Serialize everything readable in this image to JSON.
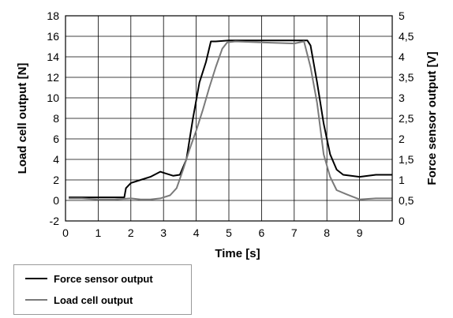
{
  "chart_data": {
    "type": "line",
    "xlabel": "Time [s]",
    "ylabel_left": "Load cell output [N]",
    "ylabel_right": "Force sensor output [V]",
    "xlim": [
      0,
      10
    ],
    "ylim_left": [
      -2,
      18
    ],
    "ylim_right": [
      0,
      5
    ],
    "x_ticks": [
      "0",
      "1",
      "2",
      "3",
      "4",
      "5",
      "6",
      "7",
      "8",
      "9"
    ],
    "y_ticks_left": [
      "-2",
      "0",
      "2",
      "4",
      "6",
      "8",
      "10",
      "12",
      "14",
      "16",
      "18"
    ],
    "y_ticks_right": [
      "0",
      "0,5",
      "1",
      "1,5",
      "2",
      "2,5",
      "3",
      "3,5",
      "4",
      "4,5",
      "5"
    ],
    "grid": true,
    "legend_position": "below-left",
    "series": [
      {
        "name": "Force sensor output",
        "axis": "left",
        "color": "#000000",
        "x": [
          0.1,
          0.5,
          1.0,
          1.5,
          1.8,
          1.85,
          2.0,
          2.3,
          2.6,
          2.9,
          3.0,
          3.3,
          3.5,
          3.7,
          3.9,
          4.1,
          4.3,
          4.45,
          4.6,
          5.0,
          6.0,
          7.0,
          7.4,
          7.5,
          7.7,
          7.9,
          8.1,
          8.3,
          8.5,
          9.0,
          9.5,
          10.0
        ],
        "y": [
          0.3,
          0.3,
          0.3,
          0.3,
          0.3,
          1.2,
          1.7,
          2.0,
          2.3,
          2.8,
          2.7,
          2.4,
          2.5,
          4.0,
          8.0,
          11.5,
          13.5,
          15.5,
          15.5,
          15.6,
          15.6,
          15.6,
          15.6,
          15.1,
          11.5,
          7.5,
          4.5,
          3.0,
          2.5,
          2.3,
          2.5,
          2.5
        ]
      },
      {
        "name": "Load cell output",
        "axis": "left",
        "color": "#7a7a7a",
        "x": [
          0.1,
          0.5,
          1.0,
          1.5,
          2.0,
          2.3,
          2.6,
          2.9,
          3.2,
          3.4,
          3.6,
          3.8,
          4.0,
          4.2,
          4.4,
          4.6,
          4.8,
          4.95,
          5.2,
          6.0,
          7.0,
          7.3,
          7.5,
          7.7,
          7.9,
          8.1,
          8.3,
          8.6,
          9.0,
          9.5,
          10.0
        ],
        "y": [
          0.2,
          0.2,
          0.1,
          0.1,
          0.2,
          0.1,
          0.1,
          0.2,
          0.5,
          1.2,
          3.0,
          5.0,
          6.8,
          8.8,
          11.0,
          13.0,
          14.8,
          15.4,
          15.5,
          15.4,
          15.3,
          15.5,
          13.0,
          9.5,
          4.5,
          2.3,
          1.0,
          0.6,
          0.1,
          0.2,
          0.2
        ]
      }
    ]
  }
}
